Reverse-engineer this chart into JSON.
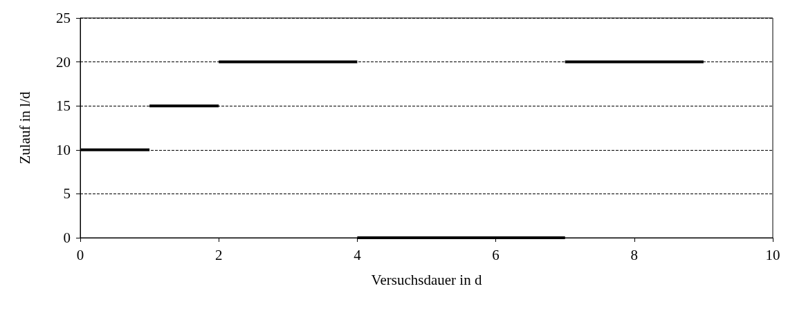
{
  "chart_data": {
    "type": "line",
    "xlabel": "Versuchsdauer in d",
    "ylabel": "Zulauf in l/d",
    "series": [
      {
        "color": "#000000",
        "x": [
          0,
          1
        ],
        "values": [
          10,
          10
        ]
      },
      {
        "color": "#000000",
        "x": [
          1,
          2
        ],
        "values": [
          15,
          15
        ]
      },
      {
        "color": "#000000",
        "x": [
          2,
          4
        ],
        "values": [
          20,
          20
        ]
      },
      {
        "color": "#000000",
        "x": [
          4,
          7
        ],
        "values": [
          0,
          0
        ]
      },
      {
        "color": "#000000",
        "x": [
          7,
          9
        ],
        "values": [
          20,
          20
        ]
      }
    ],
    "xlim": [
      0,
      10
    ],
    "xticks": [
      0,
      2,
      4,
      6,
      8,
      10
    ],
    "ylim": [
      0,
      25
    ],
    "yticks": [
      0,
      5,
      10,
      15,
      20,
      25
    ],
    "grid": "y",
    "marker": "none",
    "line_style": "solid"
  }
}
